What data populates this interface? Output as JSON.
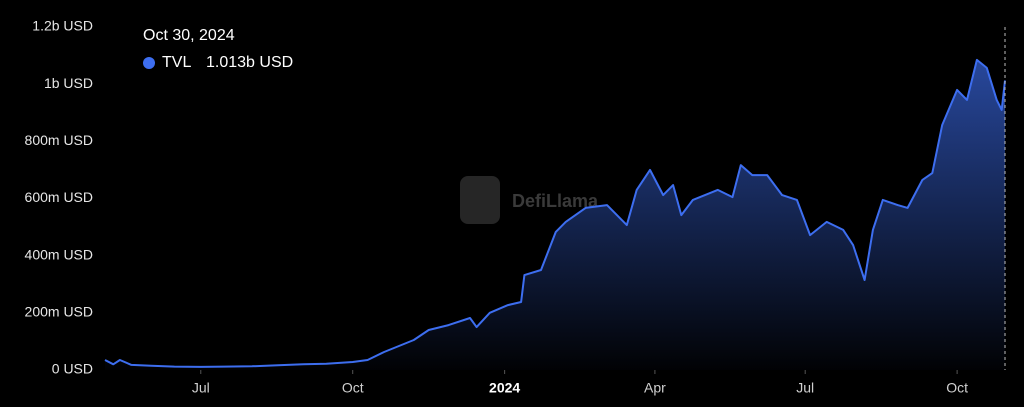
{
  "chart_data": {
    "type": "area",
    "watermark": "DefiLlama",
    "x": [
      "2023-05-04",
      "2023-05-09",
      "2023-05-13",
      "2023-05-20",
      "2023-06-01",
      "2023-06-15",
      "2023-07-01",
      "2023-07-15",
      "2023-08-01",
      "2023-08-15",
      "2023-09-01",
      "2023-09-15",
      "2023-10-01",
      "2023-10-10",
      "2023-10-20",
      "2023-11-07",
      "2023-11-16",
      "2023-11-28",
      "2023-12-11",
      "2023-12-15",
      "2023-12-23",
      "2024-01-03",
      "2024-01-11",
      "2024-01-13",
      "2024-01-23",
      "2024-02-01",
      "2024-02-07",
      "2024-02-19",
      "2024-03-03",
      "2024-03-15",
      "2024-03-21",
      "2024-03-29",
      "2024-04-06",
      "2024-04-12",
      "2024-04-17",
      "2024-04-24",
      "2024-05-09",
      "2024-05-18",
      "2024-05-23",
      "2024-05-30",
      "2024-06-08",
      "2024-06-17",
      "2024-06-26",
      "2024-07-04",
      "2024-07-14",
      "2024-07-24",
      "2024-07-30",
      "2024-08-06",
      "2024-08-11",
      "2024-08-17",
      "2024-08-26",
      "2024-09-01",
      "2024-09-10",
      "2024-09-16",
      "2024-09-22",
      "2024-10-01",
      "2024-10-07",
      "2024-10-13",
      "2024-10-19",
      "2024-10-25",
      "2024-10-28",
      "2024-10-30"
    ],
    "series": [
      {
        "name": "TVL",
        "color": "#3d6ef0",
        "values": [
          35000000,
          20000000,
          35000000,
          18000000,
          15000000,
          12000000,
          11000000,
          12000000,
          13000000,
          16000000,
          20000000,
          22000000,
          28000000,
          35000000,
          63000000,
          105000000,
          140000000,
          157000000,
          182000000,
          150000000,
          200000000,
          227000000,
          238000000,
          332000000,
          350000000,
          483000000,
          518000000,
          567000000,
          577000000,
          507000000,
          630000000,
          700000000,
          612000000,
          647000000,
          542000000,
          595000000,
          630000000,
          605000000,
          717000000,
          682000000,
          682000000,
          612000000,
          595000000,
          472000000,
          518000000,
          490000000,
          437000000,
          315000000,
          490000000,
          595000000,
          577000000,
          567000000,
          665000000,
          689000000,
          857000000,
          980000000,
          945000000,
          1085000000,
          1057000000,
          945000000,
          910000000,
          1013000000
        ]
      }
    ],
    "xlim": [
      "2023-05-04",
      "2024-10-30"
    ],
    "xticks": [
      {
        "value": "2023-07-01",
        "label": "Jul"
      },
      {
        "value": "2023-10-01",
        "label": "Oct"
      },
      {
        "value": "2024-01-01",
        "label": "2024"
      },
      {
        "value": "2024-04-01",
        "label": "Apr"
      },
      {
        "value": "2024-07-01",
        "label": "Jul"
      },
      {
        "value": "2024-10-01",
        "label": "Oct"
      }
    ],
    "ylim": [
      0,
      1200000000
    ],
    "yticks": [
      {
        "value": 0,
        "label": "0 USD"
      },
      {
        "value": 200000000,
        "label": "200m USD"
      },
      {
        "value": 400000000,
        "label": "400m USD"
      },
      {
        "value": 600000000,
        "label": "600m USD"
      },
      {
        "value": 800000000,
        "label": "800m USD"
      },
      {
        "value": 1000000000,
        "label": "1b USD"
      },
      {
        "value": 1200000000,
        "label": "1.2b USD"
      }
    ],
    "tooltip": {
      "x_label": "Oct 30, 2024",
      "value": 1013000000,
      "value_label": "1.013b USD"
    }
  }
}
